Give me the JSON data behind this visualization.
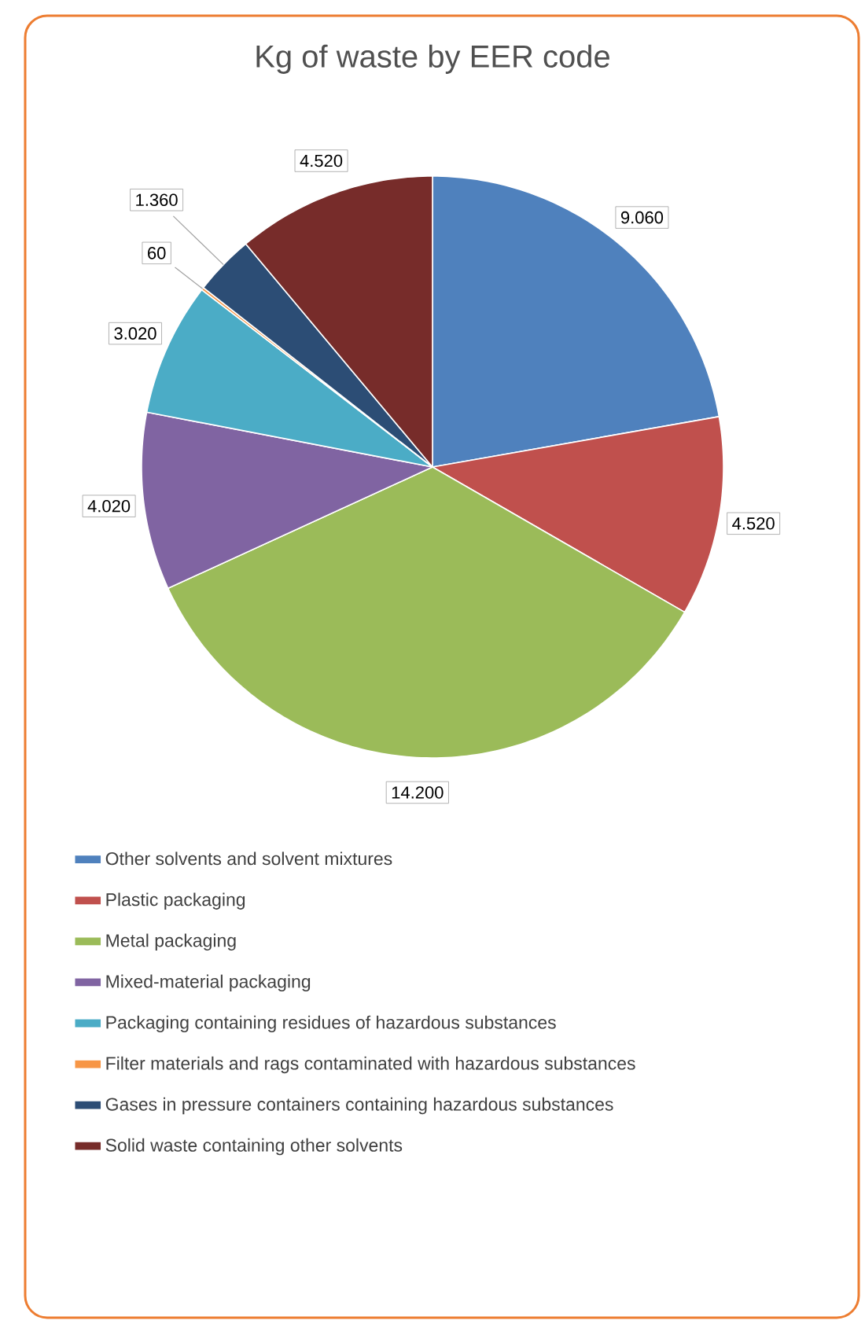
{
  "chart_data": {
    "type": "pie",
    "title": "Kg of waste by EER code",
    "categories": [
      "Other solvents and solvent mixtures",
      "Plastic packaging",
      "Metal packaging",
      "Mixed-material packaging",
      "Packaging containing residues of hazardous substances",
      "Filter materials and rags contaminated with hazardous substances",
      "Gases in pressure containers containing hazardous substances",
      "Solid waste containing other solvents"
    ],
    "values": [
      9060,
      4520,
      14200,
      4020,
      3020,
      60,
      1360,
      4520
    ],
    "value_labels": [
      "9.060",
      "4.520",
      "14.200",
      "4.020",
      "3.020",
      "60",
      "1.360",
      "4.520"
    ],
    "colors": [
      "#4f81bd",
      "#c0504d",
      "#9bbb59",
      "#8064a2",
      "#4bacc6",
      "#f79646",
      "#2c4d75",
      "#772c2a"
    ],
    "legend": "bottom"
  }
}
